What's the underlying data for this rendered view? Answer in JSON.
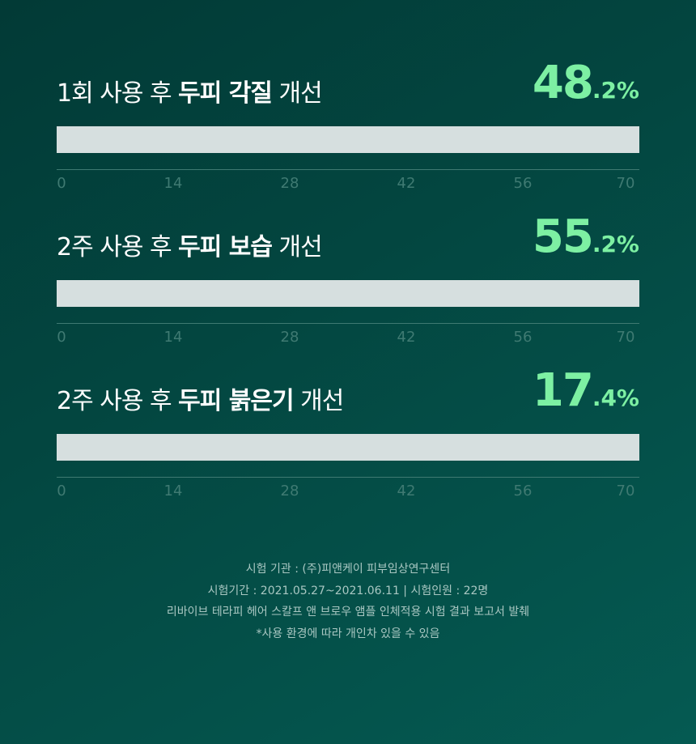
{
  "chart_data": {
    "type": "bar",
    "orientation": "horizontal",
    "xlim": [
      0,
      70
    ],
    "ticks": [
      "0",
      "14",
      "28",
      "42",
      "56",
      "70"
    ],
    "colors": {
      "value": "#7df0a3",
      "track": "#d6dfdf",
      "axis": "#3f7a72"
    },
    "items": [
      {
        "pre": "1회 사용 후 ",
        "bold": "두피 각질",
        "post": " 개선",
        "value": 48.2,
        "int": "48",
        ".dec": "",
        "dec": ".2%"
      },
      {
        "pre": "2주 사용 후 ",
        "bold": "두피 보습",
        "post": " 개선",
        "value": 55.2,
        "int": "55",
        "dec": ".2%"
      },
      {
        "pre": "2주 사용 후 ",
        "bold": "두피 붉은기",
        "post": " 개선",
        "value": 17.4,
        "int": "17",
        "dec": ".4%"
      }
    ]
  },
  "footer": [
    "시험 기관 : (주)피앤케이 피부임상연구센터",
    "시험기간 : 2021.05.27~2021.06.11 | 시험인원 : 22명",
    "리바이브 테라피 헤어 스칼프 앤 브로우 앰플 인체적용 시험 결과 보고서 발췌",
    "*사용 환경에 따라 개인차 있을 수 있음"
  ]
}
